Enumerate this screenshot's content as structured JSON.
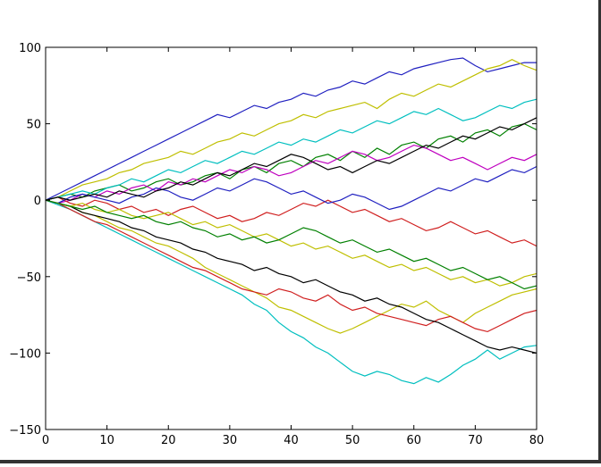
{
  "chart_data": {
    "type": "line",
    "x": [
      0,
      2,
      4,
      6,
      8,
      10,
      12,
      14,
      16,
      18,
      20,
      22,
      24,
      26,
      28,
      30,
      32,
      34,
      36,
      38,
      40,
      42,
      44,
      46,
      48,
      50,
      52,
      54,
      56,
      58,
      60,
      62,
      64,
      66,
      68,
      70,
      72,
      74,
      76,
      78,
      80
    ],
    "xlim": [
      0,
      80
    ],
    "xticks": [
      0,
      10,
      20,
      30,
      40,
      50,
      60,
      70,
      80
    ],
    "ylim": [
      -150,
      100
    ],
    "yticks": [
      {
        "value": -150,
        "label": "−150"
      },
      {
        "value": -100,
        "label": "−100"
      },
      {
        "value": -50,
        "label": "−50"
      },
      0,
      50,
      100
    ],
    "grid": false,
    "series": [
      {
        "color": "#00bfbf",
        "values": [
          0,
          -3,
          -6,
          -10,
          -14,
          -18,
          -22,
          -26,
          -30,
          -34,
          -38,
          -42,
          -46,
          -50,
          -54,
          -58,
          -62,
          -68,
          -72,
          -80,
          -86,
          -90,
          -96,
          -100,
          -106,
          -112,
          -115,
          -112,
          -114,
          -118,
          -120,
          -116,
          -119,
          -114,
          -108,
          -104,
          -98,
          -104,
          -100,
          -96,
          -95
        ]
      },
      {
        "color": "#bfbf00",
        "values": [
          0,
          -2,
          -4,
          -8,
          -10,
          -14,
          -18,
          -20,
          -24,
          -28,
          -30,
          -34,
          -38,
          -44,
          -48,
          -52,
          -56,
          -60,
          -64,
          -70,
          -72,
          -76,
          -80,
          -84,
          -87,
          -84,
          -80,
          -76,
          -72,
          -68,
          -70,
          -66,
          -72,
          -76,
          -80,
          -74,
          -70,
          -66,
          -62,
          -60,
          -58
        ]
      },
      {
        "color": "#2020c0",
        "values": [
          0,
          4,
          8,
          12,
          16,
          20,
          24,
          28,
          32,
          36,
          40,
          44,
          48,
          52,
          56,
          54,
          58,
          62,
          60,
          64,
          66,
          70,
          68,
          72,
          74,
          78,
          76,
          80,
          84,
          82,
          86,
          88,
          90,
          92,
          93,
          88,
          84,
          86,
          88,
          90,
          90
        ]
      },
      {
        "color": "#bfbf00",
        "values": [
          0,
          2,
          6,
          10,
          12,
          14,
          18,
          20,
          24,
          26,
          28,
          32,
          30,
          34,
          38,
          40,
          44,
          42,
          46,
          50,
          52,
          56,
          54,
          58,
          60,
          62,
          64,
          60,
          66,
          70,
          68,
          72,
          76,
          74,
          78,
          82,
          86,
          88,
          92,
          88,
          85
        ]
      },
      {
        "color": "#d02020",
        "values": [
          0,
          -2,
          -6,
          -10,
          -14,
          -16,
          -20,
          -24,
          -28,
          -32,
          -36,
          -40,
          -44,
          -46,
          -50,
          -54,
          -58,
          -60,
          -62,
          -58,
          -60,
          -64,
          -66,
          -62,
          -68,
          -72,
          -70,
          -74,
          -76,
          -78,
          -80,
          -82,
          -78,
          -76,
          -80,
          -84,
          -86,
          -82,
          -78,
          -74,
          -72
        ]
      },
      {
        "color": "#000000",
        "values": [
          0,
          -2,
          -4,
          -8,
          -10,
          -12,
          -14,
          -18,
          -20,
          -24,
          -26,
          -28,
          -32,
          -34,
          -38,
          -40,
          -42,
          -46,
          -44,
          -48,
          -50,
          -54,
          -52,
          -56,
          -60,
          -62,
          -66,
          -64,
          -68,
          -70,
          -74,
          -78,
          -80,
          -84,
          -88,
          -92,
          -96,
          -98,
          -96,
          -98,
          -100
        ]
      },
      {
        "color": "#008000",
        "values": [
          0,
          2,
          4,
          2,
          6,
          8,
          10,
          6,
          8,
          12,
          14,
          10,
          12,
          16,
          18,
          14,
          20,
          22,
          18,
          24,
          26,
          22,
          28,
          30,
          26,
          32,
          28,
          34,
          30,
          36,
          38,
          34,
          40,
          42,
          38,
          44,
          46,
          42,
          48,
          50,
          46
        ]
      },
      {
        "color": "#bf00bf",
        "values": [
          0,
          -2,
          0,
          4,
          2,
          6,
          4,
          8,
          10,
          6,
          12,
          10,
          14,
          12,
          16,
          20,
          18,
          22,
          20,
          16,
          18,
          22,
          26,
          24,
          28,
          32,
          30,
          26,
          28,
          32,
          36,
          34,
          30,
          26,
          28,
          24,
          20,
          24,
          28,
          26,
          30
        ]
      },
      {
        "color": "#d02020",
        "values": [
          0,
          2,
          -2,
          -4,
          0,
          -2,
          -6,
          -4,
          -8,
          -6,
          -10,
          -6,
          -4,
          -8,
          -12,
          -10,
          -14,
          -12,
          -8,
          -10,
          -6,
          -2,
          -4,
          0,
          -4,
          -8,
          -6,
          -10,
          -14,
          -12,
          -16,
          -20,
          -18,
          -14,
          -18,
          -22,
          -20,
          -24,
          -28,
          -26,
          -30
        ]
      },
      {
        "color": "#2020c0",
        "values": [
          0,
          -2,
          2,
          4,
          2,
          0,
          -2,
          2,
          4,
          8,
          6,
          2,
          0,
          4,
          8,
          6,
          10,
          14,
          12,
          8,
          4,
          6,
          2,
          -2,
          0,
          4,
          2,
          -2,
          -6,
          -4,
          0,
          4,
          8,
          6,
          10,
          14,
          12,
          16,
          20,
          18,
          22
        ]
      },
      {
        "color": "#00bfbf",
        "values": [
          0,
          2,
          4,
          6,
          4,
          8,
          10,
          14,
          12,
          16,
          20,
          18,
          22,
          26,
          24,
          28,
          32,
          30,
          34,
          38,
          36,
          40,
          38,
          42,
          46,
          44,
          48,
          52,
          50,
          54,
          58,
          56,
          60,
          56,
          52,
          54,
          58,
          62,
          60,
          64,
          66
        ]
      },
      {
        "color": "#bfbf00",
        "values": [
          0,
          -2,
          -4,
          -2,
          -6,
          -8,
          -6,
          -10,
          -12,
          -10,
          -8,
          -12,
          -16,
          -14,
          -18,
          -16,
          -20,
          -24,
          -22,
          -26,
          -30,
          -28,
          -32,
          -30,
          -34,
          -38,
          -36,
          -40,
          -44,
          -42,
          -46,
          -44,
          -48,
          -52,
          -50,
          -54,
          -52,
          -56,
          -54,
          -50,
          -48
        ]
      },
      {
        "color": "#000000",
        "values": [
          0,
          2,
          0,
          2,
          4,
          2,
          6,
          4,
          2,
          6,
          8,
          12,
          10,
          14,
          18,
          16,
          20,
          24,
          22,
          26,
          30,
          28,
          24,
          20,
          22,
          18,
          22,
          26,
          24,
          28,
          32,
          36,
          34,
          38,
          42,
          40,
          44,
          48,
          46,
          50,
          54
        ]
      },
      {
        "color": "#008000",
        "values": [
          0,
          -2,
          -4,
          -6,
          -4,
          -8,
          -10,
          -12,
          -10,
          -14,
          -16,
          -14,
          -18,
          -20,
          -24,
          -22,
          -26,
          -24,
          -28,
          -26,
          -22,
          -18,
          -20,
          -24,
          -28,
          -26,
          -30,
          -34,
          -32,
          -36,
          -40,
          -38,
          -42,
          -46,
          -44,
          -48,
          -52,
          -50,
          -54,
          -58,
          -56
        ]
      }
    ]
  }
}
